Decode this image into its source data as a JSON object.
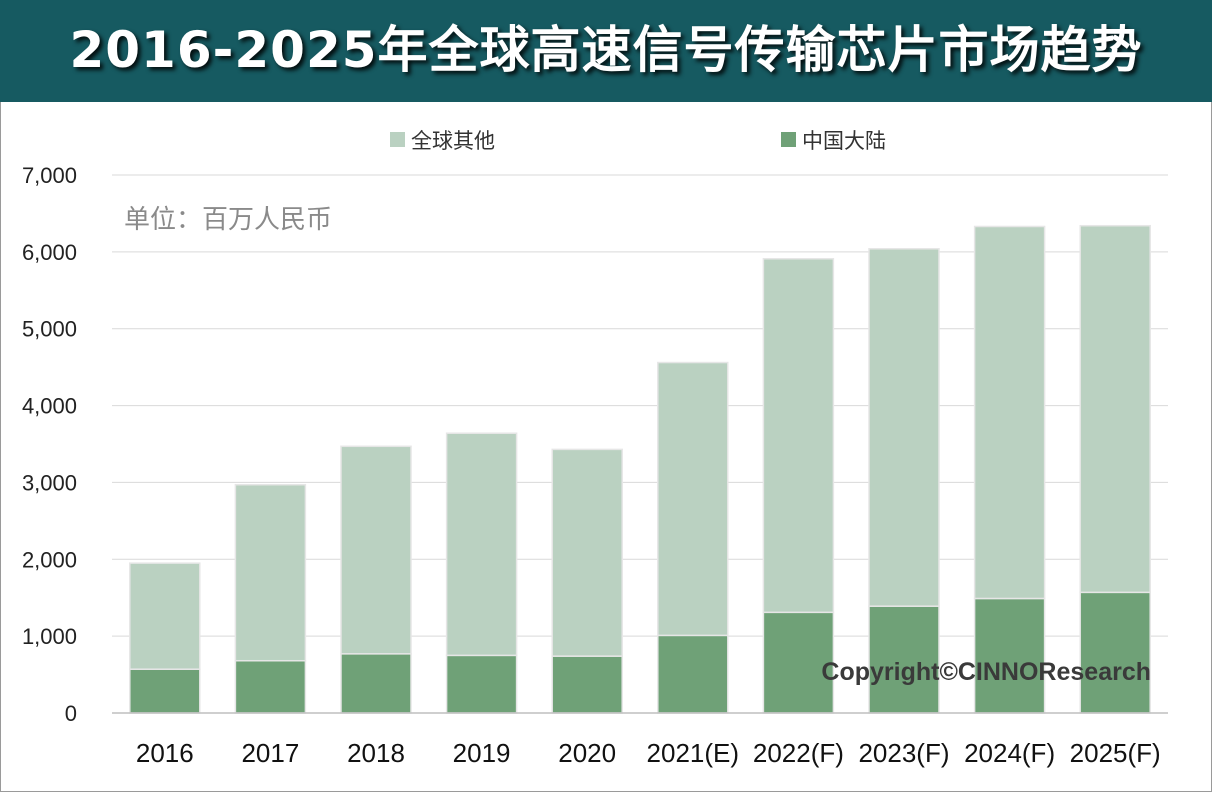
{
  "title": "2016-2025年全球高速信号传输芯片市场趋势",
  "unit_label": "单位：百万人民币",
  "copyright": "Copyright©CINNOResearch",
  "colors": {
    "title_bg": "#165a61",
    "global_other": "#bad1c1",
    "china_mainland": "#6fa177",
    "bar_border": "#e6e6e6",
    "gridline": "#d9d9d9"
  },
  "chart_data": {
    "type": "bar",
    "stacked": true,
    "categories": [
      "2016",
      "2017",
      "2018",
      "2019",
      "2020",
      "2021(E)",
      "2022(F)",
      "2023(F)",
      "2024(F)",
      "2025(F)"
    ],
    "series": [
      {
        "name": "中国大陆",
        "values": [
          570,
          680,
          770,
          750,
          740,
          1010,
          1310,
          1390,
          1490,
          1570
        ]
      },
      {
        "name": "全球其他",
        "values": [
          1380,
          2290,
          2700,
          2890,
          2690,
          3550,
          4600,
          4650,
          4840,
          4770
        ]
      }
    ],
    "totals": [
      1950,
      2970,
      3470,
      3640,
      3430,
      4560,
      5910,
      6040,
      6330,
      6340
    ],
    "ylim": [
      0,
      7000
    ],
    "yticks": [
      "0",
      "1,000",
      "2,000",
      "3,000",
      "4,000",
      "5,000",
      "6,000",
      "7,000"
    ],
    "xlabel": "",
    "ylabel": "",
    "legend_position": "top",
    "legend_order": [
      "全球其他",
      "中国大陆"
    ],
    "grid": true
  }
}
